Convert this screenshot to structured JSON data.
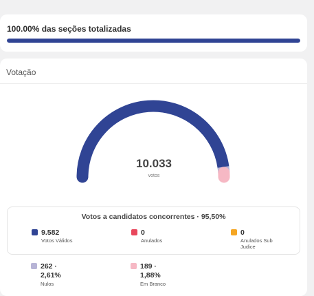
{
  "progress": {
    "title": "100.00% das seções totalizadas",
    "percent": 100.0,
    "color": "#304494"
  },
  "votacao": {
    "title": "Votação",
    "total": "10.033",
    "total_label": "votos",
    "gauge": {
      "total": 10033,
      "segments": [
        {
          "name": "Votos Válidos",
          "value": 9582,
          "color": "#304494"
        },
        {
          "name": "Nulos",
          "value": 262,
          "color": "#b7b4d6"
        },
        {
          "name": "Em Branco",
          "value": 189,
          "color": "#f6b8c4"
        }
      ]
    },
    "summary_title": "Votos a candidatos concorrentes · 95,50%",
    "legend": [
      {
        "value": "9.582",
        "label": "Votos Válidos",
        "color": "#304494"
      },
      {
        "value": "0",
        "label": "Anulados",
        "color": "#e8475c"
      },
      {
        "value": "0",
        "label": "Anulados Sub Judice",
        "color": "#f5a623"
      },
      {
        "value": "262 ·\n2,61%",
        "label": "Nulos",
        "color": "#b7b4d6"
      },
      {
        "value": "189 ·\n1,88%",
        "label": "Em Branco",
        "color": "#f6b8c4"
      }
    ]
  }
}
